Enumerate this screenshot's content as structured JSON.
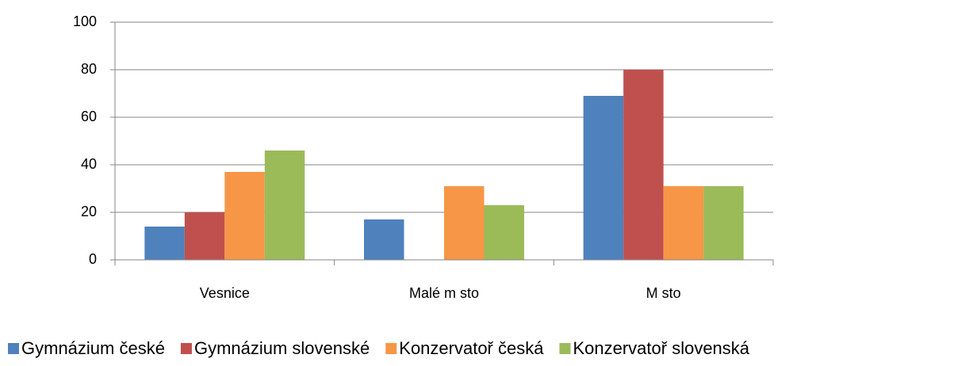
{
  "chart_data": {
    "type": "bar",
    "categories": [
      "Vesnice",
      "Malé m  sto",
      "M  sto"
    ],
    "series": [
      {
        "name": "Gymnázium české",
        "color": "#4f81bd",
        "values": [
          14,
          17,
          69
        ]
      },
      {
        "name": "Gymnázium slovenské",
        "color": "#c0504d",
        "values": [
          20,
          0,
          80
        ]
      },
      {
        "name": "Konzervatoř česká",
        "color": "#f79646",
        "values": [
          37,
          31,
          31
        ]
      },
      {
        "name": "Konzervatoř slovenská",
        "color": "#9bbb59",
        "values": [
          46,
          23,
          31
        ]
      }
    ],
    "ylim": [
      0,
      100
    ],
    "yticks": [
      0,
      20,
      40,
      60,
      80,
      100
    ],
    "grid": true,
    "legend": "bottom"
  }
}
